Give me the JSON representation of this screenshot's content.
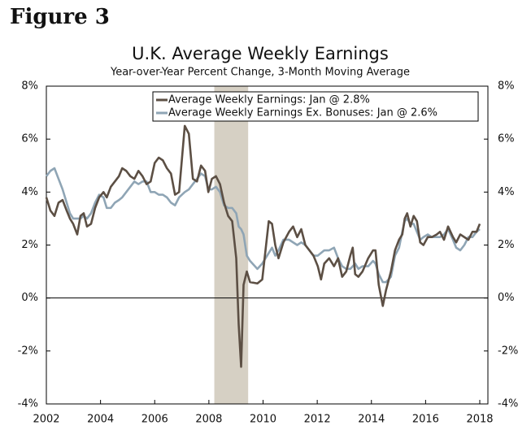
{
  "figure_label": "Figure 3",
  "chart_data": {
    "type": "line",
    "title": "U.K. Average Weekly Earnings",
    "subtitle": "Year-over-Year Percent Change, 3-Month Moving Average",
    "x": [
      2002.0,
      2002.15,
      2002.3,
      2002.45,
      2002.6,
      2002.75,
      2002.87,
      2002.99,
      2003.14,
      2003.26,
      2003.38,
      2003.5,
      2003.65,
      2003.8,
      2003.95,
      2004.11,
      2004.23,
      2004.38,
      2004.53,
      2004.68,
      2004.8,
      2004.95,
      2005.1,
      2005.25,
      2005.4,
      2005.55,
      2005.7,
      2005.85,
      2006.0,
      2006.15,
      2006.3,
      2006.45,
      2006.6,
      2006.75,
      2006.9,
      2007.11,
      2007.26,
      2007.41,
      2007.56,
      2007.71,
      2007.86,
      2007.98,
      2008.11,
      2008.26,
      2008.41,
      2008.56,
      2008.71,
      2008.86,
      2009.01,
      2009.1,
      2009.19,
      2009.28,
      2009.4,
      2009.52,
      2009.79,
      2009.97,
      2010.09,
      2010.21,
      2010.33,
      2010.45,
      2010.57,
      2010.75,
      2010.96,
      2011.11,
      2011.26,
      2011.41,
      2011.56,
      2011.71,
      2011.86,
      2012.02,
      2012.14,
      2012.26,
      2012.44,
      2012.62,
      2012.77,
      2012.92,
      2013.07,
      2013.22,
      2013.31,
      2013.4,
      2013.52,
      2013.67,
      2013.88,
      2014.06,
      2014.15,
      2014.27,
      2014.42,
      2014.54,
      2014.72,
      2014.87,
      2015.02,
      2015.14,
      2015.23,
      2015.32,
      2015.44,
      2015.56,
      2015.68,
      2015.8,
      2015.92,
      2016.08,
      2016.23,
      2016.41,
      2016.53,
      2016.68,
      2016.83,
      2017.01,
      2017.13,
      2017.28,
      2017.43,
      2017.58,
      2017.73,
      2017.88,
      2018.0
    ],
    "series": [
      {
        "name": "Average Weekly Earnings: Jan @ 2.8%",
        "color": "#5c4f44",
        "values": [
          3.8,
          3.3,
          3.1,
          3.6,
          3.7,
          3.3,
          3.0,
          2.8,
          2.4,
          3.1,
          3.2,
          2.7,
          2.8,
          3.4,
          3.8,
          4.0,
          3.8,
          4.2,
          4.4,
          4.6,
          4.9,
          4.8,
          4.6,
          4.5,
          4.8,
          4.6,
          4.3,
          4.4,
          5.1,
          5.3,
          5.2,
          4.9,
          4.7,
          3.9,
          4.0,
          6.5,
          6.2,
          4.5,
          4.4,
          5.0,
          4.8,
          4.0,
          4.5,
          4.6,
          4.3,
          3.6,
          3.1,
          2.9,
          1.5,
          -1.0,
          -2.6,
          0.5,
          1.0,
          0.6,
          0.55,
          0.7,
          1.8,
          2.9,
          2.8,
          2.0,
          1.5,
          2.1,
          2.5,
          2.7,
          2.3,
          2.6,
          2.0,
          1.8,
          1.6,
          1.2,
          0.7,
          1.3,
          1.5,
          1.2,
          1.5,
          0.8,
          1.0,
          1.6,
          1.9,
          0.9,
          0.8,
          1.0,
          1.5,
          1.8,
          1.8,
          0.5,
          -0.3,
          0.3,
          1.0,
          1.8,
          2.2,
          2.4,
          3.0,
          3.2,
          2.7,
          3.1,
          2.9,
          2.1,
          2.0,
          2.3,
          2.3,
          2.4,
          2.5,
          2.2,
          2.7,
          2.3,
          2.1,
          2.4,
          2.3,
          2.2,
          2.5,
          2.5,
          2.8
        ]
      },
      {
        "name": "Average Weekly Earnings Ex. Bonuses: Jan @ 2.6%",
        "color": "#8fa5b5",
        "values": [
          4.6,
          4.8,
          4.9,
          4.5,
          4.1,
          3.6,
          3.2,
          3.0,
          3.0,
          3.0,
          3.1,
          3.0,
          3.2,
          3.6,
          3.9,
          3.8,
          3.4,
          3.4,
          3.6,
          3.7,
          3.8,
          4.0,
          4.2,
          4.4,
          4.3,
          4.4,
          4.4,
          4.0,
          4.0,
          3.9,
          3.9,
          3.8,
          3.6,
          3.5,
          3.8,
          4.0,
          4.1,
          4.3,
          4.5,
          4.7,
          4.6,
          4.1,
          4.1,
          4.2,
          4.0,
          3.5,
          3.4,
          3.4,
          3.2,
          2.7,
          2.6,
          2.4,
          1.6,
          1.4,
          1.1,
          1.3,
          1.5,
          1.7,
          1.9,
          1.6,
          1.8,
          2.2,
          2.2,
          2.1,
          2.0,
          2.1,
          2.0,
          1.8,
          1.6,
          1.6,
          1.7,
          1.8,
          1.8,
          1.9,
          1.5,
          1.2,
          1.1,
          1.1,
          1.2,
          1.3,
          1.1,
          1.2,
          1.2,
          1.4,
          1.3,
          0.9,
          0.6,
          0.6,
          0.8,
          1.6,
          1.9,
          2.5,
          2.9,
          3.0,
          2.8,
          2.8,
          2.5,
          2.2,
          2.3,
          2.4,
          2.3,
          2.3,
          2.3,
          2.4,
          2.6,
          2.2,
          1.9,
          1.8,
          2.0,
          2.3,
          2.3,
          2.5,
          2.6
        ]
      }
    ],
    "shaded_range": [
      2008.2,
      2009.45
    ],
    "xlim": [
      2002,
      2018.3
    ],
    "xticks": [
      2002,
      2004,
      2006,
      2008,
      2010,
      2012,
      2014,
      2016,
      2018
    ],
    "ylim": [
      -4,
      8
    ],
    "yticks": [
      {
        "value": -4,
        "label": "-4%"
      },
      {
        "value": -2,
        "label": "-2%"
      },
      {
        "value": 0,
        "label": "0%"
      },
      {
        "value": 2,
        "label": "2%"
      },
      {
        "value": 4,
        "label": "4%"
      },
      {
        "value": 6,
        "label": "6%"
      },
      {
        "value": 8,
        "label": "8%"
      }
    ],
    "y2lim": [
      -4,
      8
    ],
    "y2ticks": [
      {
        "value": -4,
        "label": "-4%"
      },
      {
        "value": -2,
        "label": "-2%"
      },
      {
        "value": 0,
        "label": "0%"
      },
      {
        "value": 2,
        "label": "2%"
      },
      {
        "value": 4,
        "label": "4%"
      },
      {
        "value": 6,
        "label": "6%"
      },
      {
        "value": 8,
        "label": "8%"
      }
    ],
    "legend": "top"
  }
}
